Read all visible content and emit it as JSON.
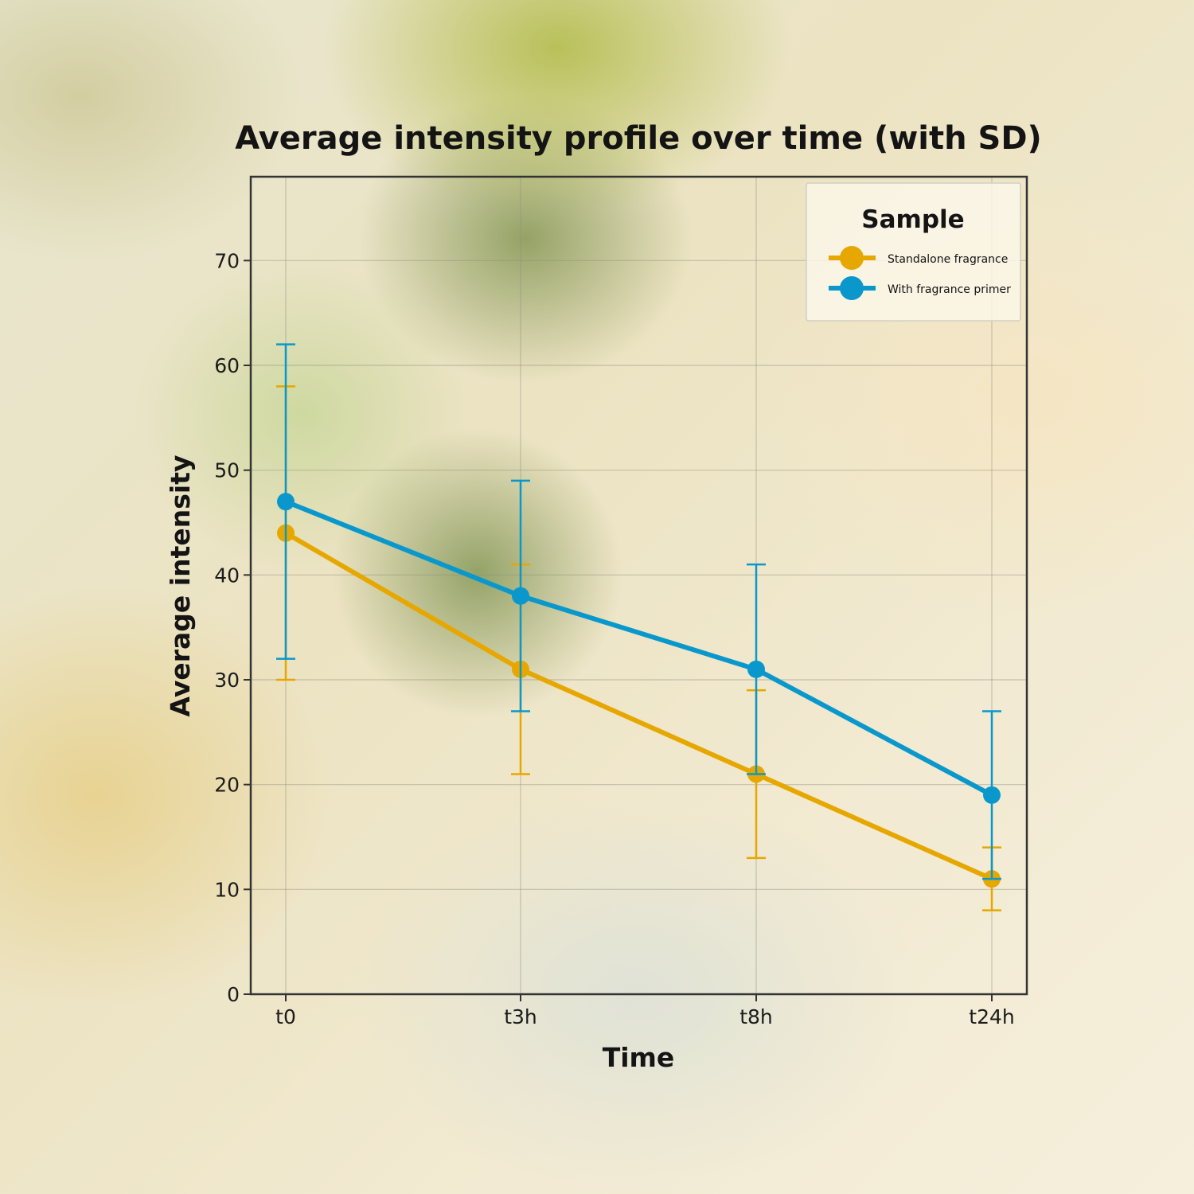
{
  "chart_data": {
    "type": "line",
    "title": "Average intensity profile over time (with SD)",
    "xlabel": "Time",
    "ylabel": "Average intensity",
    "categories": [
      "t0",
      "t3h",
      "t8h",
      "t24h"
    ],
    "ylim": [
      0,
      78
    ],
    "yticks": [
      0,
      10,
      20,
      30,
      40,
      50,
      60,
      70
    ],
    "grid": true,
    "legend": {
      "title": "Sample",
      "position": "top-right"
    },
    "series": [
      {
        "name": "Standalone fragrance",
        "color": "#E6A800",
        "values": [
          44,
          31,
          21,
          11
        ],
        "error_low": [
          30,
          21,
          13,
          8
        ],
        "error_high": [
          58,
          41,
          29,
          14
        ]
      },
      {
        "name": "With fragrance primer",
        "color": "#0A98CC",
        "values": [
          47,
          38,
          31,
          19
        ],
        "error_low": [
          32,
          27,
          21,
          11
        ],
        "error_high": [
          62,
          49,
          41,
          27
        ]
      }
    ]
  }
}
